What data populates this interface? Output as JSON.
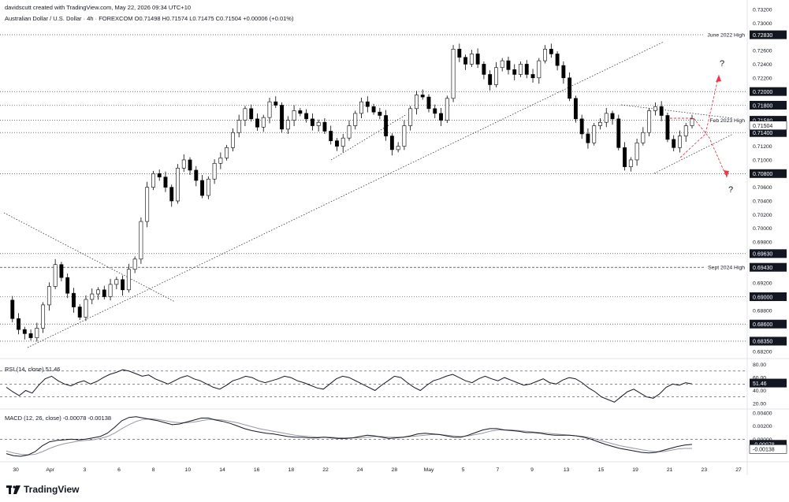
{
  "header": {
    "attribution": "davidscutt created with TradingView.com, May 22, 2026 09:34 UTC+10",
    "symbol_line": "Australian Dollar / U.S. Dollar · 4h · FOREXCOM  O0.71498  H0.71574  L0.71475  C0.71504  +0.00006 (+0.01%)"
  },
  "brand": {
    "name": "TradingView"
  },
  "colors": {
    "up": "#ffffff",
    "down": "#000000",
    "wick": "#000000",
    "projection": "#f23645",
    "label_bg": "#131722"
  },
  "chart_data": [
    {
      "type": "candlestick",
      "title": "Australian Dollar / U.S. Dollar · 4h · FOREXCOM",
      "ylim": [
        0.6813,
        0.732
      ],
      "y_ticks": [
        "0.73200",
        "0.73000",
        "0.72600",
        "0.72400",
        "0.72200",
        "0.71800",
        "0.71600",
        "0.71200",
        "0.71000",
        "0.70600",
        "0.70400",
        "0.70200",
        "0.70000",
        "0.69800",
        "0.69200",
        "0.68800",
        "0.68200"
      ],
      "x_ticks": [
        "30",
        "Apr",
        "3",
        "6",
        "8",
        "10",
        "14",
        "16",
        "18",
        "22",
        "24",
        "28",
        "May",
        "5",
        "7",
        "9",
        "13",
        "15",
        "19",
        "21",
        "23",
        "27"
      ],
      "last_price": "0.71504",
      "price_path": [
        0.6895,
        0.6868,
        0.6852,
        0.6846,
        0.684,
        0.6854,
        0.6888,
        0.6915,
        0.6947,
        0.6928,
        0.6905,
        0.6885,
        0.687,
        0.6896,
        0.6904,
        0.691,
        0.69,
        0.6918,
        0.6925,
        0.691,
        0.694,
        0.6955,
        0.701,
        0.706,
        0.708,
        0.7075,
        0.706,
        0.704,
        0.7088,
        0.71,
        0.7085,
        0.707,
        0.7048,
        0.7072,
        0.7095,
        0.7103,
        0.7118,
        0.714,
        0.7158,
        0.7175,
        0.716,
        0.7148,
        0.7162,
        0.7185,
        0.718,
        0.7145,
        0.7158,
        0.7172,
        0.7168,
        0.716,
        0.715,
        0.7155,
        0.7142,
        0.7128,
        0.712,
        0.7132,
        0.715,
        0.7168,
        0.7185,
        0.7178,
        0.717,
        0.7165,
        0.7135,
        0.7115,
        0.712,
        0.715,
        0.7175,
        0.7195,
        0.7192,
        0.7175,
        0.7168,
        0.7158,
        0.719,
        0.7262,
        0.725,
        0.724,
        0.7255,
        0.724,
        0.7225,
        0.721,
        0.7235,
        0.7245,
        0.7232,
        0.7225,
        0.724,
        0.7225,
        0.722,
        0.7245,
        0.7262,
        0.7255,
        0.7238,
        0.722,
        0.719,
        0.716,
        0.7138,
        0.7125,
        0.715,
        0.7155,
        0.7168,
        0.716,
        0.7118,
        0.709,
        0.71,
        0.7125,
        0.714,
        0.7172,
        0.7178,
        0.7165,
        0.713,
        0.7118,
        0.7135,
        0.715,
        0.716
      ],
      "horizontal_levels": [
        {
          "price": 0.7283,
          "value_label": "0.72830",
          "name": "June 2022 High",
          "style": "dotted"
        },
        {
          "price": 0.72,
          "value_label": "0.72000",
          "name": "",
          "style": "dotted"
        },
        {
          "price": 0.718,
          "value_label": "0.71800",
          "name": "",
          "style": "dotted"
        },
        {
          "price": 0.7158,
          "value_label": "0.71580",
          "name": "Feb 2023 High",
          "style": "dotted"
        },
        {
          "price": 0.714,
          "value_label": "0.71400",
          "name": "",
          "style": "dotted"
        },
        {
          "price": 0.708,
          "value_label": "0.70800",
          "name": "",
          "style": "dotted"
        },
        {
          "price": 0.6963,
          "value_label": "0.69630",
          "name": "",
          "style": "dotted"
        },
        {
          "price": 0.6943,
          "value_label": "0.69430",
          "name": "Sept 2024 High",
          "style": "dashed"
        },
        {
          "price": 0.69,
          "value_label": "0.69000",
          "name": "",
          "style": "dotted"
        },
        {
          "price": 0.686,
          "value_label": "0.68600",
          "name": "",
          "style": "dotted"
        },
        {
          "price": 0.6835,
          "value_label": "0.68350",
          "name": "",
          "style": "dotted"
        }
      ],
      "question_marks": [
        "?",
        "?"
      ]
    },
    {
      "type": "line",
      "title": "RSI (14, close) 51.46",
      "ylim": [
        15,
        82
      ],
      "y_ticks": [
        "80.00",
        "60.00",
        "40.00",
        "20.00"
      ],
      "guide_levels": [
        70,
        50,
        30
      ],
      "last_value": "51.46",
      "values": [
        45,
        38,
        32,
        40,
        36,
        48,
        58,
        62,
        55,
        50,
        47,
        52,
        55,
        50,
        54,
        60,
        65,
        68,
        72,
        70,
        66,
        62,
        64,
        58,
        54,
        50,
        55,
        60,
        63,
        58,
        55,
        50,
        45,
        42,
        48,
        55,
        58,
        62,
        60,
        55,
        52,
        55,
        58,
        62,
        60,
        55,
        52,
        48,
        44,
        42,
        50,
        58,
        62,
        60,
        55,
        50,
        45,
        40,
        48,
        55,
        62,
        60,
        52,
        45,
        40,
        48,
        55,
        58,
        62,
        65,
        60,
        55,
        52,
        58,
        62,
        58,
        55,
        60,
        56,
        52,
        48,
        50,
        54,
        58,
        52,
        50,
        56,
        60,
        58,
        52,
        44,
        38,
        30,
        26,
        22,
        30,
        38,
        42,
        36,
        30,
        28,
        35,
        45,
        50,
        48,
        52,
        50
      ]
    },
    {
      "type": "line",
      "title": "MACD (12, 26, close) -0.00078 -0.00138",
      "ylim": [
        -0.0032,
        0.0041
      ],
      "y_ticks": [
        "0.00400",
        "0.00200",
        "0.00000"
      ],
      "macd_last": "-0.00078",
      "signal_last": "-0.00138",
      "series": [
        {
          "name": "MACD",
          "values": [
            -0.0022,
            -0.0025,
            -0.0026,
            -0.0024,
            -0.0019,
            -0.001,
            -0.0004,
            -0.0002,
            -0.0001,
            0.0,
            -0.0001,
            0.0,
            0.0002,
            0.0004,
            0.0009,
            0.0018,
            0.0028,
            0.0033,
            0.0034,
            0.0032,
            0.003,
            0.0028,
            0.0025,
            0.0022,
            0.0023,
            0.0026,
            0.0029,
            0.0032,
            0.0032,
            0.0029,
            0.0027,
            0.0024,
            0.002,
            0.0016,
            0.0013,
            0.0011,
            0.0009,
            0.0008,
            0.0006,
            0.0004,
            0.0003,
            0.0003,
            0.0002,
            0.0002,
            0.0003,
            0.0002,
            0.0001,
            0.0001,
            0.0002,
            0.0004,
            0.0006,
            0.0005,
            0.0003,
            0.0001,
            0.0002,
            0.0003,
            0.0005,
            0.0008,
            0.0009,
            0.0008,
            0.0007,
            0.0005,
            0.0003,
            0.0003,
            0.0006,
            0.001,
            0.0014,
            0.0016,
            0.0016,
            0.0014,
            0.0013,
            0.0012,
            0.001,
            0.001,
            0.0009,
            0.0007,
            0.0006,
            0.0006,
            0.0006,
            0.0005,
            0.0003,
            0.0,
            -0.0004,
            -0.0008,
            -0.0011,
            -0.0014,
            -0.0016,
            -0.0018,
            -0.002,
            -0.0021,
            -0.002,
            -0.0017,
            -0.0014,
            -0.0011,
            -0.0009,
            -0.0008
          ]
        },
        {
          "name": "Signal",
          "values": [
            -0.0018,
            -0.0021,
            -0.0023,
            -0.0024,
            -0.0023,
            -0.0019,
            -0.0014,
            -0.001,
            -0.0007,
            -0.0005,
            -0.0003,
            -0.0002,
            -0.0001,
            0.0001,
            0.0004,
            0.0009,
            0.0016,
            0.0022,
            0.0027,
            0.003,
            0.0031,
            0.003,
            0.0028,
            0.0026,
            0.0025,
            0.0025,
            0.0026,
            0.0028,
            0.003,
            0.003,
            0.0029,
            0.0027,
            0.0025,
            0.0022,
            0.0019,
            0.0016,
            0.0014,
            0.0012,
            0.001,
            0.0008,
            0.0006,
            0.0005,
            0.0004,
            0.0003,
            0.0003,
            0.0003,
            0.0002,
            0.0002,
            0.0002,
            0.0002,
            0.0003,
            0.0004,
            0.0004,
            0.0003,
            0.0003,
            0.0003,
            0.0004,
            0.0005,
            0.0006,
            0.0007,
            0.0007,
            0.0006,
            0.0005,
            0.0004,
            0.0005,
            0.0007,
            0.0009,
            0.0012,
            0.0014,
            0.0014,
            0.0014,
            0.0013,
            0.0012,
            0.0011,
            0.001,
            0.0009,
            0.0008,
            0.0007,
            0.0006,
            0.0005,
            0.0004,
            0.0002,
            -0.0001,
            -0.0004,
            -0.0007,
            -0.001,
            -0.0012,
            -0.0014,
            -0.0016,
            -0.0018,
            -0.0019,
            -0.0019,
            -0.0017,
            -0.0015,
            -0.0014,
            -0.0014
          ]
        }
      ]
    }
  ]
}
